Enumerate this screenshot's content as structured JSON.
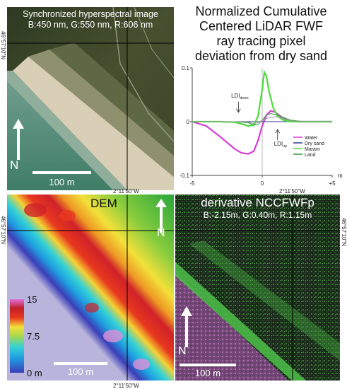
{
  "photo_panel": {
    "title": "Synchronized hyperspectral image",
    "bands": "B:450 nm, G:550 nm, R:606 nm",
    "north_label": "N",
    "scale_label": "100 m"
  },
  "chart_title_lines": [
    "Normalized Cumulative",
    "Centered LiDAR FWF",
    "ray tracing pixel",
    "deviation from dry sand"
  ],
  "dem_panel": {
    "title": "DEM",
    "north_label": "N",
    "scale_label": "100 m",
    "colorbar_ticks": [
      "15",
      "7.5",
      "0 m"
    ]
  },
  "derivative_panel": {
    "title": "derivative NCCFWFp",
    "bands": "B:-2.15m, G:0.40m, R:1.15m",
    "north_label": "N",
    "scale_label": "100 m"
  },
  "coordinates": {
    "longitude_label": "2°11'50\"W",
    "latitude_label": "46°57'10\"N"
  },
  "colors": {
    "water": "#d63bd6",
    "dry_sand": "#2d3a8c",
    "maram": "#4cdc3a",
    "land": "#2e9b3a"
  },
  "chart_data": {
    "type": "line",
    "x_tick_labels": [
      "-5",
      "0",
      "+5"
    ],
    "y_tick_labels": [
      "0.1",
      "0",
      "-0.1"
    ],
    "x_unit": "m",
    "xlim": [
      -5,
      5
    ],
    "ylim": [
      -0.1,
      0.1
    ],
    "annotations": [
      {
        "text": "LDI",
        "sub": "down",
        "x": -1.6,
        "y": 0.045
      },
      {
        "text": "LDI",
        "sub": "up",
        "x": 1.3,
        "y": -0.045
      }
    ],
    "series": [
      {
        "name": "Water",
        "color": "#d63bd6",
        "x": [
          -5,
          -4,
          -3,
          -2,
          -1.5,
          -1,
          -0.6,
          -0.3,
          0,
          0.3,
          0.6,
          0.9,
          1.2,
          1.6,
          2,
          2.5,
          3,
          4,
          5
        ],
        "y": [
          0,
          -0.008,
          -0.028,
          -0.05,
          -0.058,
          -0.06,
          -0.055,
          -0.035,
          -0.008,
          0.012,
          0.02,
          0.018,
          0.012,
          0.005,
          0.001,
          0,
          0,
          0,
          0
        ]
      },
      {
        "name": "Dry sand",
        "color": "#2d3a8c",
        "x": [
          -5,
          5
        ],
        "y": [
          0,
          0
        ]
      },
      {
        "name": "Maram",
        "color": "#4cdc3a",
        "x": [
          -5,
          -3,
          -2,
          -1.5,
          -1,
          -0.6,
          -0.3,
          0,
          0.15,
          0.3,
          0.5,
          0.8,
          1.1,
          1.5,
          2,
          3,
          5
        ],
        "y": [
          0,
          0,
          -0.001,
          -0.004,
          -0.008,
          -0.006,
          0.01,
          0.06,
          0.092,
          0.085,
          0.055,
          0.025,
          0.01,
          0.003,
          0,
          0,
          0
        ]
      },
      {
        "name": "Land",
        "color": "#2e9b3a",
        "x": [
          -5,
          -2,
          -1,
          -0.6,
          -0.3,
          0,
          0.3,
          0.6,
          1,
          1.5,
          2,
          3,
          5
        ],
        "y": [
          0,
          0,
          -0.002,
          -0.006,
          -0.006,
          0.003,
          0.012,
          0.015,
          0.013,
          0.008,
          0.003,
          0,
          0
        ]
      },
      {
        "name": "",
        "color": "#9a9a9a",
        "x": [
          -5,
          -2,
          -1,
          -0.5,
          0,
          0.5,
          1,
          1.5,
          2,
          3,
          5
        ],
        "y": [
          0,
          0,
          -0.001,
          -0.004,
          0.002,
          0.008,
          0.009,
          0.006,
          0.002,
          0,
          0
        ]
      }
    ]
  }
}
